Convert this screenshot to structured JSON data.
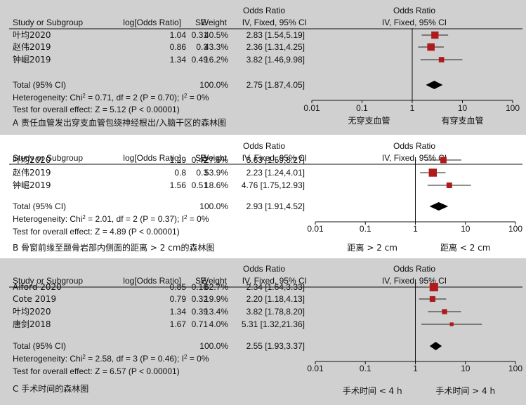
{
  "colors": {
    "panel_a": "#d0d0d0",
    "panel_b": "#ffffff",
    "panel_c": "#d0d0d0",
    "study_marker": "#b01a1a",
    "diamond": "#000000"
  },
  "headers": {
    "study": "Study or Subgroup",
    "log_or": "log[Odds Ratio]",
    "se": "SE",
    "weight": "Weight",
    "or_title": "Odds Ratio",
    "or_method": "IV, Fixed, 95% CI",
    "plot_title": "Odds Ratio",
    "plot_method": "IV, Fixed, 95% CI"
  },
  "chart_data": [
    {
      "type": "forest",
      "caption": "A 责任血管发出穿支血管包绕神经根出/入脑干区的森林图",
      "studies": [
        {
          "name": "叶均2020",
          "log_or": "1.04",
          "se": "0.31",
          "weight": "40.5%",
          "or_ci": "2.83 [1.54,5.19]",
          "or": 2.83,
          "lo": 1.54,
          "hi": 5.19,
          "w": 40.5
        },
        {
          "name": "赵伟2019",
          "log_or": "0.86",
          "se": "0.3",
          "weight": "43.3%",
          "or_ci": "2.36 [1.31,4.25]",
          "or": 2.36,
          "lo": 1.31,
          "hi": 4.25,
          "w": 43.3
        },
        {
          "name": "钟崛2019",
          "log_or": "1.34",
          "se": "0.49",
          "weight": "16.2%",
          "or_ci": "3.82 [1.46,9.98]",
          "or": 3.82,
          "lo": 1.46,
          "hi": 9.98,
          "w": 16.2
        }
      ],
      "total": {
        "label": "Total (95% CI)",
        "weight": "100.0%",
        "or_ci": "2.75 [1.87,4.05]",
        "or": 2.75,
        "lo": 1.87,
        "hi": 4.05
      },
      "heterogeneity": {
        "label": "Heterogeneity: Chi",
        "sup": "2",
        "rest": " = 0.71, df = 2 (P = 0.70); I",
        "sup2": "2",
        "end": " = 0%"
      },
      "overall": "Test for overall effect: Z = 5.12 (P < 0.00001)",
      "axis": {
        "scale": "log",
        "range": [
          0.01,
          100
        ],
        "ticks": [
          "0.01",
          "0.1",
          "1",
          "10",
          "100"
        ]
      },
      "favours_left": "无穿支血管",
      "favours_right": "有穿支血管"
    },
    {
      "type": "forest",
      "caption": "B 骨窗前缘至颞骨岩部内侧面的距离 > 2 cm的森林图",
      "studies": [
        {
          "name": "叶均2020",
          "log_or": "1.29",
          "se": "0.42",
          "weight": "27.5%",
          "or_ci": "3.63 [1.59,8.27]",
          "or": 3.63,
          "lo": 1.59,
          "hi": 8.27,
          "w": 27.5
        },
        {
          "name": "赵伟2019",
          "log_or": "0.8",
          "se": "0.3",
          "weight": "53.9%",
          "or_ci": "2.23 [1.24,4.01]",
          "or": 2.23,
          "lo": 1.24,
          "hi": 4.01,
          "w": 53.9
        },
        {
          "name": "钟崛2019",
          "log_or": "1.56",
          "se": "0.51",
          "weight": "18.6%",
          "or_ci": "4.76 [1.75,12.93]",
          "or": 4.76,
          "lo": 1.75,
          "hi": 12.93,
          "w": 18.6
        }
      ],
      "total": {
        "label": "Total (95% CI)",
        "weight": "100.0%",
        "or_ci": "2.93 [1.91,4.52]",
        "or": 2.93,
        "lo": 1.91,
        "hi": 4.52
      },
      "heterogeneity": {
        "label": "Heterogeneity: Chi",
        "sup": "2",
        "rest": " = 2.01, df = 2 (P = 0.37); I",
        "sup2": "2",
        "end": " = 0%"
      },
      "overall": "Test for overall effect: Z = 4.89 (P < 0.00001)",
      "axis": {
        "scale": "log",
        "range": [
          0.01,
          100
        ],
        "ticks": [
          "0.01",
          "0.1",
          "1",
          "10",
          "100"
        ]
      },
      "favours_left": "距离 > 2 cm",
      "favours_right": "距离 < 2 cm"
    },
    {
      "type": "forest",
      "caption": "C 手术时间的森林图",
      "studies": [
        {
          "name": "Alford 2020",
          "log_or": "0.85",
          "se": "0.18",
          "weight": "62.7%",
          "or_ci": "2.34 [1.64,3.33]",
          "or": 2.34,
          "lo": 1.64,
          "hi": 3.33,
          "w": 62.7
        },
        {
          "name": "Cote 2019",
          "log_or": "0.79",
          "se": "0.32",
          "weight": "19.9%",
          "or_ci": "2.20 [1.18,4.13]",
          "or": 2.2,
          "lo": 1.18,
          "hi": 4.13,
          "w": 19.9
        },
        {
          "name": "叶均2020",
          "log_or": "1.34",
          "se": "0.39",
          "weight": "13.4%",
          "or_ci": "3.82 [1.78,8.20]",
          "or": 3.82,
          "lo": 1.78,
          "hi": 8.2,
          "w": 13.4
        },
        {
          "name": "唐剑2018",
          "log_or": "1.67",
          "se": "0.71",
          "weight": "4.0%",
          "or_ci": "5.31 [1.32,21.36]",
          "or": 5.31,
          "lo": 1.32,
          "hi": 21.36,
          "w": 4.0
        }
      ],
      "total": {
        "label": "Total (95% CI)",
        "weight": "100.0%",
        "or_ci": "2.55 [1.93,3.37]",
        "or": 2.55,
        "lo": 1.93,
        "hi": 3.37
      },
      "heterogeneity": {
        "label": "Heterogeneity: Chi",
        "sup": "2",
        "rest": " = 2.58, df = 3 (P = 0.46); I",
        "sup2": "2",
        "end": " = 0%"
      },
      "overall": "Test for overall effect: Z = 6.57 (P < 0.00001)",
      "axis": {
        "scale": "log",
        "range": [
          0.01,
          100
        ],
        "ticks": [
          "0.01",
          "0.1",
          "1",
          "10",
          "100"
        ]
      },
      "favours_left": "手术时间 < 4 h",
      "favours_right": "手术时间 > 4 h"
    }
  ]
}
